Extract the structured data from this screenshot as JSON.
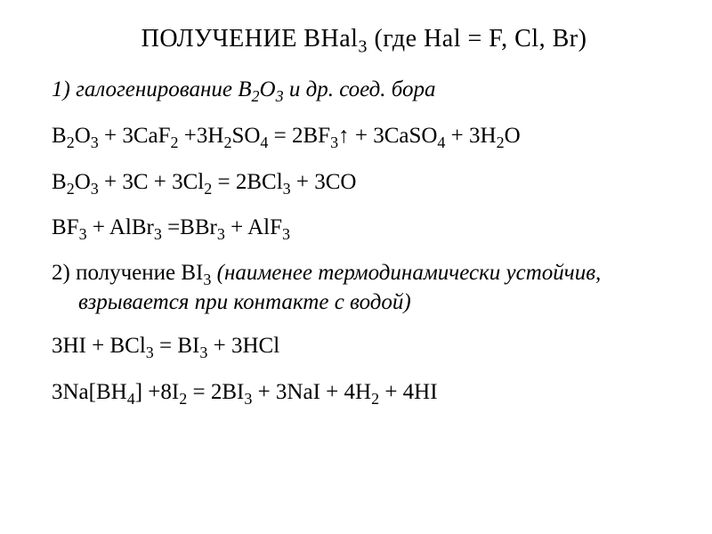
{
  "title_a": "ПОЛУЧЕНИЕ BHal",
  "title_b": " (где Hal = F, Cl, Br)",
  "section1_a": "1) галогенирование B",
  "section1_b": "O",
  "section1_c": " и др. соед. бора",
  "eq1": {
    "a": "B",
    "b": "O",
    "c": " + 3CaF",
    "d": " +3H",
    "e": "SO",
    "f": " = 2BF",
    "g": "↑ + 3CaSO",
    "h": " + 3H",
    "i": "O"
  },
  "eq2": {
    "a": "B",
    "b": "O",
    "c": " + 3C + 3Cl",
    "d": " = 2BCl",
    "e": " + 3CO"
  },
  "eq3": {
    "a": "BF",
    "b": " + AlBr",
    "c": " =BBr",
    "d": " + AlF"
  },
  "section2_a": "2)  получение  BI",
  "section2_b": "  (наименее  термодинамически  устойчив,",
  "section2_c": "взрывается при контакте с водой)",
  "eq4": {
    "a": "3HI + BCl",
    "b": " = BI",
    "c": " + 3HCl"
  },
  "eq5": {
    "a": "3Na[BH",
    "b": "] +8I",
    "c": " = 2BI",
    "d": " + 3NaI + 4H",
    "e": " + 4HI"
  },
  "s": {
    "n2": "2",
    "n3": "3",
    "n4": "4"
  }
}
